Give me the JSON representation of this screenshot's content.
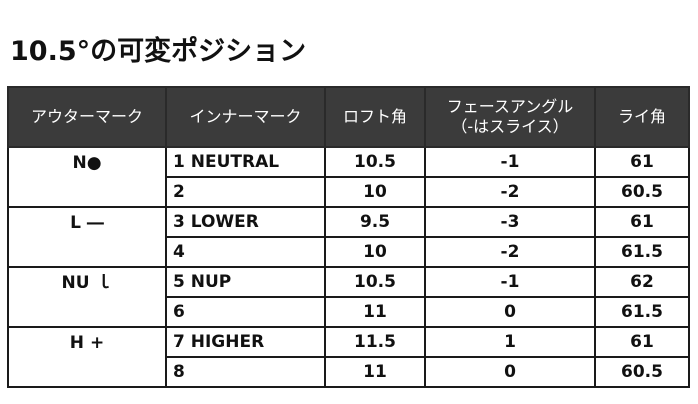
{
  "page": {
    "title": "10.5°の可変ポジション"
  },
  "table": {
    "headers": {
      "outer_mark": "アウターマーク",
      "inner_mark": "インナーマーク",
      "loft": "ロフト角",
      "face_angle_line1": "フェースアングル",
      "face_angle_line2": "（-はスライス）",
      "lie": "ライ角"
    },
    "rows": [
      {
        "outer": "N●",
        "inner": "1 NEUTRAL",
        "loft": "10.5",
        "face": "-1",
        "lie": "61"
      },
      {
        "outer": "",
        "inner": "2",
        "loft": "10",
        "face": "-2",
        "lie": "60.5"
      },
      {
        "outer": "L ―",
        "inner": "3 LOWER",
        "loft": "9.5",
        "face": "-3",
        "lie": "61"
      },
      {
        "outer": "",
        "inner": "4",
        "loft": "10",
        "face": "-2",
        "lie": "61.5"
      },
      {
        "outer": "NU ｌ",
        "inner": "5 NUP",
        "loft": "10.5",
        "face": "-1",
        "lie": "62"
      },
      {
        "outer": "",
        "inner": "6",
        "loft": "11",
        "face": "0",
        "lie": "61.5"
      },
      {
        "outer": "H +",
        "inner": "7 HIGHER",
        "loft": "11.5",
        "face": "1",
        "lie": "61"
      },
      {
        "outer": "",
        "inner": "8",
        "loft": "11",
        "face": "0",
        "lie": "60.5"
      }
    ]
  }
}
